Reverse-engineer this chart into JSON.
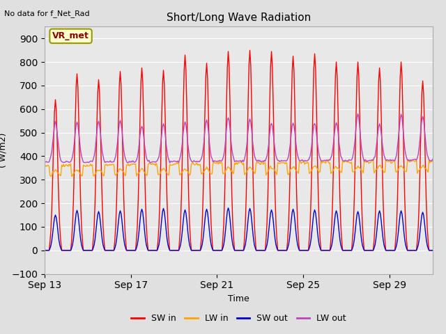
{
  "title": "Short/Long Wave Radiation",
  "xlabel": "Time",
  "ylabel": "( W/m2)",
  "top_label": "No data for f_Net_Rad",
  "box_label": "VR_met",
  "ylim": [
    -100,
    950
  ],
  "yticks": [
    -100,
    0,
    100,
    200,
    300,
    400,
    500,
    600,
    700,
    800,
    900
  ],
  "x_tick_labels": [
    "Sep 13",
    "Sep 17",
    "Sep 21",
    "Sep 25",
    "Sep 29"
  ],
  "x_tick_pos": [
    0,
    4,
    8,
    12,
    16
  ],
  "fig_bg_color": "#e0e0e0",
  "plot_bg_color": "#e8e8e8",
  "sw_in_color": "#ff0000",
  "lw_in_color": "#ffa500",
  "sw_out_color": "#0000cd",
  "lw_out_color": "#bb44bb",
  "line_width": 1.0,
  "n_days": 18,
  "figsize": [
    6.4,
    4.8
  ],
  "dpi": 100,
  "peak_sw_vals": [
    640,
    750,
    725,
    760,
    775,
    765,
    830,
    795,
    845,
    850,
    845,
    825,
    835,
    800,
    800,
    775,
    800,
    720
  ],
  "peak_sw_out_vals": [
    150,
    170,
    165,
    168,
    175,
    178,
    172,
    175,
    180,
    178,
    172,
    175,
    172,
    168,
    165,
    168,
    168,
    162
  ],
  "peak_lw_out_vals": [
    545,
    545,
    548,
    552,
    530,
    535,
    545,
    552,
    565,
    558,
    540,
    542,
    540,
    542,
    580,
    538,
    578,
    568
  ],
  "lw_in_night_base": 360,
  "lw_in_day_dip": 50,
  "lw_out_night_base": 375
}
